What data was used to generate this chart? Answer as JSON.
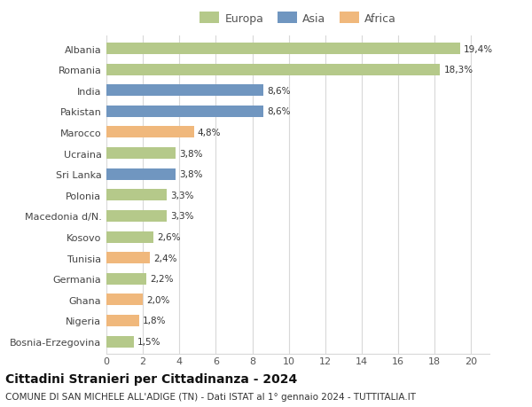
{
  "categories": [
    "Albania",
    "Romania",
    "India",
    "Pakistan",
    "Marocco",
    "Ucraina",
    "Sri Lanka",
    "Polonia",
    "Macedonia d/N.",
    "Kosovo",
    "Tunisia",
    "Germania",
    "Ghana",
    "Nigeria",
    "Bosnia-Erzegovina"
  ],
  "values": [
    19.4,
    18.3,
    8.6,
    8.6,
    4.8,
    3.8,
    3.8,
    3.3,
    3.3,
    2.6,
    2.4,
    2.2,
    2.0,
    1.8,
    1.5
  ],
  "labels": [
    "19,4%",
    "18,3%",
    "8,6%",
    "8,6%",
    "4,8%",
    "3,8%",
    "3,8%",
    "3,3%",
    "3,3%",
    "2,6%",
    "2,4%",
    "2,2%",
    "2,0%",
    "1,8%",
    "1,5%"
  ],
  "continents": [
    "Europa",
    "Europa",
    "Asia",
    "Asia",
    "Africa",
    "Europa",
    "Asia",
    "Europa",
    "Europa",
    "Europa",
    "Africa",
    "Europa",
    "Africa",
    "Africa",
    "Europa"
  ],
  "colors": {
    "Europa": "#b5c98a",
    "Asia": "#7096c0",
    "Africa": "#f0b87c"
  },
  "legend_labels": [
    "Europa",
    "Asia",
    "Africa"
  ],
  "title": "Cittadini Stranieri per Cittadinanza - 2024",
  "subtitle": "COMUNE DI SAN MICHELE ALL'ADIGE (TN) - Dati ISTAT al 1° gennaio 2024 - TUTTITALIA.IT",
  "xlim": [
    0,
    21
  ],
  "xticks": [
    0,
    2,
    4,
    6,
    8,
    10,
    12,
    14,
    16,
    18,
    20
  ],
  "background_color": "#ffffff",
  "grid_color": "#d8d8d8",
  "bar_height": 0.55,
  "title_fontsize": 10,
  "subtitle_fontsize": 7.5,
  "label_fontsize": 7.5,
  "tick_fontsize": 8,
  "legend_fontsize": 9
}
